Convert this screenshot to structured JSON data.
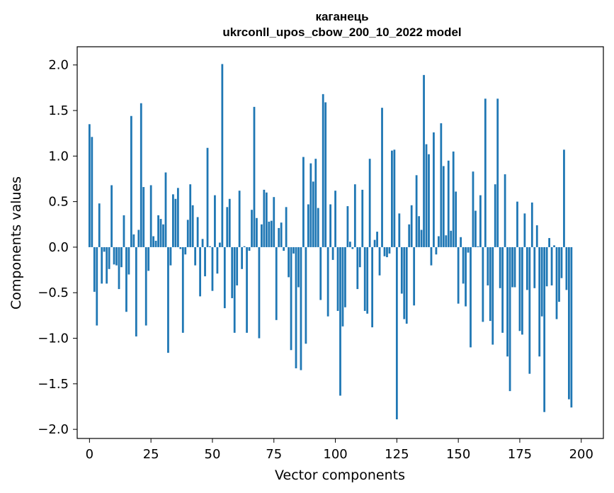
{
  "chart_data": {
    "type": "bar",
    "title_line1": "каганець",
    "title_line2": "ukrconll_upos_cbow_200_10_2022 model",
    "xlabel": "Vector components",
    "ylabel": "Components values",
    "xlim": [
      -5,
      209
    ],
    "ylim": [
      -2.1,
      2.2
    ],
    "xticks": [
      0,
      25,
      50,
      75,
      100,
      125,
      150,
      175,
      200
    ],
    "xtick_labels": [
      "0",
      "25",
      "50",
      "75",
      "100",
      "125",
      "150",
      "175",
      "200"
    ],
    "yticks": [
      2.0,
      1.5,
      1.0,
      0.5,
      0.0,
      -0.5,
      -1.0,
      -1.5,
      -2.0
    ],
    "ytick_labels": [
      "2.0",
      "1.5",
      "1.0",
      "0.5",
      "0.0",
      "−0.5",
      "−1.0",
      "−1.5",
      "−2.0"
    ],
    "bar_color": "#1f77b4",
    "values": [
      1.35,
      1.21,
      -0.49,
      -0.86,
      0.48,
      -0.4,
      -0.05,
      -0.4,
      -0.24,
      0.68,
      -0.19,
      -0.2,
      -0.46,
      -0.22,
      0.35,
      -0.71,
      -0.3,
      1.44,
      0.14,
      -0.98,
      0.19,
      1.58,
      0.66,
      -0.86,
      -0.26,
      0.68,
      0.12,
      0.07,
      0.35,
      0.31,
      0.25,
      0.82,
      -1.16,
      -0.2,
      0.58,
      0.53,
      0.65,
      -0.02,
      -0.94,
      -0.08,
      0.3,
      0.69,
      0.46,
      -0.2,
      0.33,
      -0.54,
      0.09,
      -0.32,
      1.09,
      0.01,
      -0.48,
      0.57,
      -0.29,
      0.05,
      2.01,
      -0.67,
      0.44,
      0.53,
      -0.56,
      -0.94,
      -0.42,
      0.62,
      -0.24,
      0.01,
      -0.94,
      -0.04,
      0.41,
      1.54,
      0.32,
      -1.0,
      0.25,
      0.63,
      0.6,
      0.28,
      0.29,
      0.55,
      -0.8,
      0.21,
      0.27,
      -0.04,
      0.44,
      -0.33,
      -1.13,
      -0.07,
      -1.33,
      -0.44,
      -1.35,
      0.99,
      -1.06,
      0.47,
      0.92,
      0.72,
      0.97,
      0.43,
      -0.58,
      1.68,
      1.59,
      -0.76,
      0.47,
      -0.14,
      0.62,
      -0.7,
      -1.63,
      -0.87,
      -0.66,
      0.45,
      0.06,
      -0.02,
      0.69,
      -0.46,
      -0.22,
      0.63,
      -0.7,
      -0.73,
      0.97,
      -0.88,
      0.08,
      0.17,
      -0.31,
      1.53,
      -0.1,
      -0.11,
      -0.07,
      1.06,
      1.07,
      -1.89,
      0.37,
      -0.51,
      -0.79,
      -0.84,
      0.25,
      0.46,
      -0.64,
      0.79,
      0.34,
      0.19,
      1.89,
      1.13,
      1.02,
      -0.2,
      1.26,
      -0.08,
      0.12,
      1.36,
      0.89,
      0.13,
      0.95,
      0.18,
      1.05,
      0.61,
      -0.62,
      0.11,
      -0.4,
      -0.65,
      -0.06,
      -1.1,
      0.83,
      0.4,
      0.01,
      0.57,
      -0.82,
      1.63,
      -0.42,
      -0.81,
      -1.07,
      0.69,
      1.63,
      -0.45,
      -0.94,
      0.8,
      -1.2,
      -1.58,
      -0.44,
      -0.44,
      0.5,
      -0.92,
      -0.96,
      0.37,
      -0.47,
      -1.39,
      0.49,
      -0.45,
      0.24,
      -1.2,
      -0.76,
      -1.81,
      -0.43,
      0.1,
      -0.42,
      0.02,
      -0.79,
      -0.6,
      -0.34,
      1.07,
      -0.47,
      -1.67,
      -1.76
    ]
  }
}
